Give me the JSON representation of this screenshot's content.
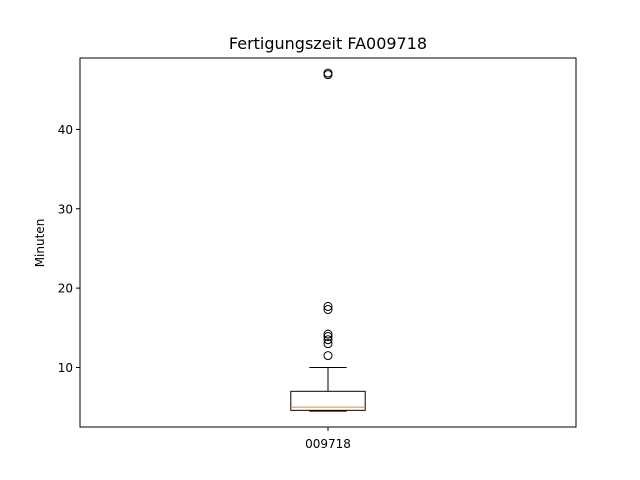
{
  "chart_data": {
    "type": "box",
    "title": "Fertigungszeit FA009718",
    "xlabel": "",
    "ylabel": "Minuten",
    "categories": [
      "009718"
    ],
    "ylim": [
      2.5,
      49
    ],
    "yticks": [
      10,
      20,
      30,
      40
    ],
    "boxes": [
      {
        "category": "009718",
        "whisker_low": 4.5,
        "q1": 4.6,
        "median": 5.0,
        "q3": 7.0,
        "whisker_high": 10.0,
        "outliers": [
          11.5,
          13.0,
          13.5,
          13.9,
          14.2,
          17.3,
          17.7,
          46.9,
          47.1
        ]
      }
    ],
    "grid": false,
    "legend": "none",
    "colors": {
      "box": "#000000",
      "median": "#ff7f0e",
      "outlier": "#000000",
      "background": "#ffffff"
    }
  }
}
